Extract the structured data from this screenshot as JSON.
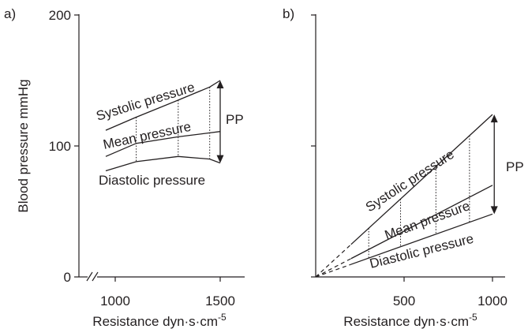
{
  "chart_data": [
    {
      "panel": "a)",
      "type": "line",
      "xlabel": "Resistance dyn·s·cm",
      "xlabel_sup": "-5",
      "ylabel": "Blood pressure mmHg",
      "xlim": [
        880,
        1540
      ],
      "ylim": [
        0,
        200
      ],
      "x_ticks": [
        1000,
        1500
      ],
      "y_ticks": [
        0,
        100,
        200
      ],
      "x_axis_break": true,
      "series": [
        {
          "name": "Systolic pressure",
          "x": [
            955,
            1100,
            1300,
            1450,
            1500
          ],
          "y": [
            112,
            122,
            135,
            145,
            150
          ]
        },
        {
          "name": "Mean pressure",
          "x": [
            955,
            1100,
            1300,
            1450,
            1500
          ],
          "y": [
            92,
            102,
            107,
            110,
            111
          ]
        },
        {
          "name": "Diastolic pressure",
          "x": [
            955,
            1100,
            1300,
            1450,
            1500
          ],
          "y": [
            81,
            88,
            92,
            90,
            87
          ]
        }
      ],
      "dotted_x": [
        1100,
        1300,
        1450
      ],
      "pp_label": "PP",
      "pp_x": 1500,
      "pp_range": [
        87,
        150
      ]
    },
    {
      "panel": "b)",
      "type": "line",
      "xlabel": "Resistance dyn·s·cm",
      "xlabel_sup": "-5",
      "xlim": [
        0,
        1050
      ],
      "ylim": [
        0,
        200
      ],
      "x_ticks": [
        500,
        1000
      ],
      "y_tick_marks": [
        0,
        100,
        200
      ],
      "series": [
        {
          "name": "Systolic pressure",
          "x": [
            0,
            1000
          ],
          "y": [
            0,
            124
          ]
        },
        {
          "name": "Mean pressure",
          "x": [
            0,
            1000
          ],
          "y": [
            0,
            70
          ]
        },
        {
          "name": "Diastolic pressure",
          "x": [
            0,
            1000
          ],
          "y": [
            0,
            48
          ]
        }
      ],
      "dashed_until_x": 200,
      "dotted_x": [
        300,
        480,
        680,
        870
      ],
      "pp_label": "PP",
      "pp_x": 1010,
      "pp_range": [
        48,
        124
      ]
    }
  ]
}
